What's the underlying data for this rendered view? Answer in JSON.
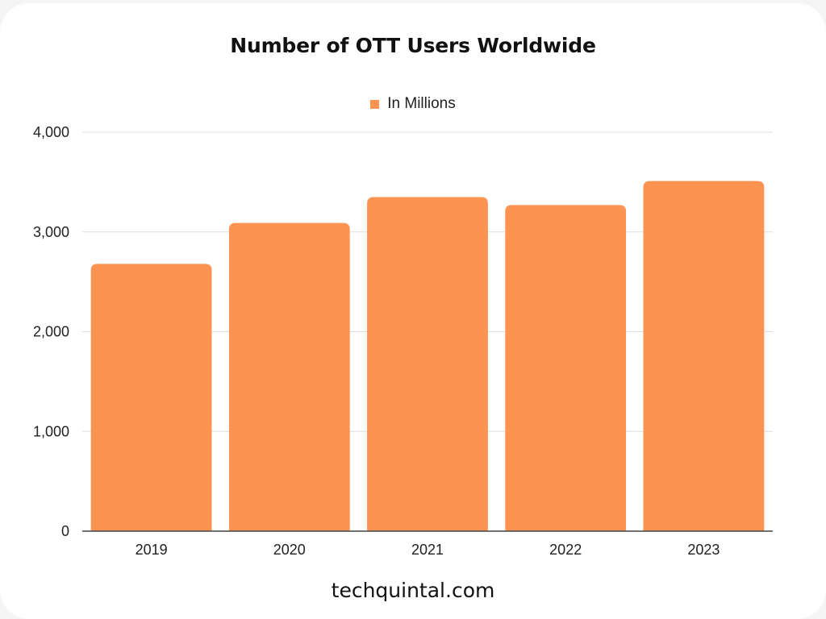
{
  "chart_data": {
    "type": "bar",
    "title": "Number of OTT Users Worldwide",
    "categories": [
      "2019",
      "2020",
      "2021",
      "2022",
      "2023"
    ],
    "series": [
      {
        "name": "In Millions",
        "values": [
          2680,
          3090,
          3350,
          3270,
          3510
        ]
      }
    ],
    "ylim": [
      0,
      4000
    ],
    "yticks": [
      0,
      1000,
      2000,
      3000,
      4000
    ],
    "ytick_labels": [
      "0",
      "1,000",
      "2,000",
      "3,000",
      "4,000"
    ],
    "xlabel": "",
    "ylabel": "",
    "grid": true,
    "legend_position": "top-center",
    "bar_color": "#fd9350"
  },
  "footer": {
    "text": "techquintal.com"
  }
}
